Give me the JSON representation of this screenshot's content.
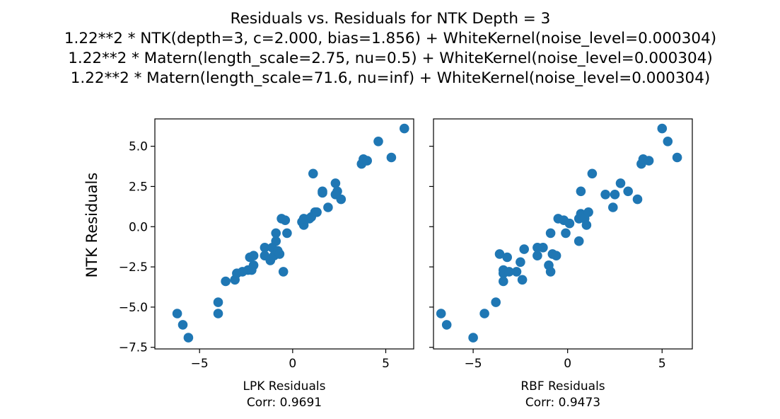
{
  "chart_data": {
    "type": "scatter",
    "title_lines": [
      "Residuals vs. Residuals for NTK Depth = 3",
      "1.22**2 * NTK(depth=3, c=2.000, bias=1.856) + WhiteKernel(noise_level=0.000304)",
      "1.22**2 * Matern(length_scale=2.75, nu=0.5) + WhiteKernel(noise_level=0.000304)",
      "1.22**2 * Matern(length_scale=71.6, nu=inf) + WhiteKernel(noise_level=0.000304)"
    ],
    "ylabel": "NTK Residuals",
    "ylim": [
      -7.6,
      6.7
    ],
    "yticks": [
      -7.5,
      -5.0,
      -2.5,
      0.0,
      2.5,
      5.0
    ],
    "ytick_labels": [
      "−7.5",
      "−5.0",
      "−2.5",
      "0.0",
      "2.5",
      "5.0"
    ],
    "color": "#1f77b4",
    "panels": [
      {
        "xlabel": "LPK Residuals",
        "corr_label": "Corr: 0.9691",
        "xlim": [
          -7.4,
          6.5
        ],
        "xticks": [
          -5,
          0,
          5
        ],
        "xtick_labels": [
          "−5",
          "0",
          "5"
        ],
        "points": [
          [
            -6.2,
            -5.4
          ],
          [
            -5.9,
            -6.1
          ],
          [
            -5.6,
            -6.9
          ],
          [
            -4.0,
            -4.7
          ],
          [
            -4.0,
            -5.4
          ],
          [
            -3.6,
            -3.4
          ],
          [
            -3.1,
            -3.3
          ],
          [
            -3.0,
            -2.9
          ],
          [
            -2.7,
            -2.8
          ],
          [
            -2.4,
            -2.7
          ],
          [
            -2.3,
            -1.9
          ],
          [
            -2.2,
            -2.7
          ],
          [
            -2.1,
            -1.8
          ],
          [
            -2.1,
            -2.4
          ],
          [
            -1.5,
            -1.3
          ],
          [
            -1.5,
            -1.8
          ],
          [
            -1.2,
            -2.1
          ],
          [
            -1.1,
            -1.3
          ],
          [
            -1.0,
            -1.8
          ],
          [
            -0.9,
            -0.4
          ],
          [
            -0.9,
            -0.9
          ],
          [
            -0.8,
            -1.5
          ],
          [
            -0.7,
            -1.7
          ],
          [
            -0.6,
            0.5
          ],
          [
            -0.5,
            -2.8
          ],
          [
            -0.4,
            0.4
          ],
          [
            -0.3,
            -0.4
          ],
          [
            0.5,
            0.3
          ],
          [
            0.6,
            0.1
          ],
          [
            0.6,
            0.5
          ],
          [
            0.9,
            0.5
          ],
          [
            1.0,
            0.6
          ],
          [
            1.1,
            3.3
          ],
          [
            1.2,
            0.9
          ],
          [
            1.3,
            0.9
          ],
          [
            1.6,
            2.2
          ],
          [
            1.6,
            2.1
          ],
          [
            1.9,
            1.2
          ],
          [
            2.3,
            2.0
          ],
          [
            2.3,
            2.7
          ],
          [
            2.4,
            2.2
          ],
          [
            2.6,
            1.7
          ],
          [
            3.7,
            3.9
          ],
          [
            3.8,
            4.2
          ],
          [
            4.0,
            4.1
          ],
          [
            4.6,
            5.3
          ],
          [
            5.3,
            4.3
          ],
          [
            6.0,
            6.1
          ]
        ]
      },
      {
        "xlabel": "RBF Residuals",
        "corr_label": "Corr: 0.9473",
        "xlim": [
          -7.1,
          6.6
        ],
        "xticks": [
          -5,
          0,
          5
        ],
        "xtick_labels": [
          "−5",
          "0",
          "5"
        ],
        "points": [
          [
            -6.7,
            -5.4
          ],
          [
            -6.4,
            -6.1
          ],
          [
            -5.0,
            -6.9
          ],
          [
            -4.4,
            -5.4
          ],
          [
            -3.8,
            -4.7
          ],
          [
            -3.6,
            -1.7
          ],
          [
            -3.4,
            -2.7
          ],
          [
            -3.4,
            -2.9
          ],
          [
            -3.4,
            -3.4
          ],
          [
            -3.2,
            -1.9
          ],
          [
            -3.1,
            -2.8
          ],
          [
            -2.7,
            -2.8
          ],
          [
            -2.5,
            -2.2
          ],
          [
            -2.4,
            -3.3
          ],
          [
            -2.3,
            -1.4
          ],
          [
            -1.6,
            -1.3
          ],
          [
            -1.6,
            -1.8
          ],
          [
            -1.3,
            -1.3
          ],
          [
            -1.0,
            -2.4
          ],
          [
            -0.9,
            -2.8
          ],
          [
            -0.9,
            -0.4
          ],
          [
            -0.8,
            -1.7
          ],
          [
            -0.6,
            -1.8
          ],
          [
            -0.5,
            0.5
          ],
          [
            -0.2,
            0.4
          ],
          [
            -0.1,
            -0.4
          ],
          [
            0.1,
            0.2
          ],
          [
            0.6,
            -0.9
          ],
          [
            0.6,
            0.5
          ],
          [
            0.7,
            2.2
          ],
          [
            0.7,
            0.8
          ],
          [
            0.8,
            0.7
          ],
          [
            0.9,
            0.5
          ],
          [
            1.0,
            0.1
          ],
          [
            1.1,
            0.9
          ],
          [
            1.3,
            3.3
          ],
          [
            2.0,
            2.0
          ],
          [
            2.4,
            1.2
          ],
          [
            2.5,
            2.0
          ],
          [
            2.8,
            2.7
          ],
          [
            3.2,
            2.2
          ],
          [
            3.7,
            1.7
          ],
          [
            3.9,
            3.9
          ],
          [
            4.0,
            4.2
          ],
          [
            4.3,
            4.1
          ],
          [
            5.0,
            6.1
          ],
          [
            5.3,
            5.3
          ],
          [
            5.8,
            4.3
          ]
        ]
      }
    ]
  }
}
